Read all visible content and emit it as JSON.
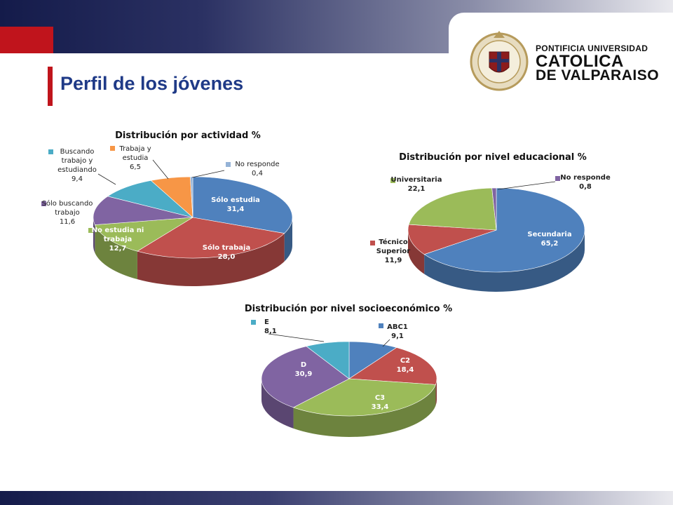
{
  "header": {
    "title": "Perfil de los jóvenes",
    "university": {
      "line1": "PONTIFICIA UNIVERSIDAD",
      "line2": "CATOLICA",
      "line3": "DE VALPARAISO",
      "crest_icon": "university-crest-icon"
    }
  },
  "colors": {
    "navy": "#1a1f4e",
    "red": "#c0141c",
    "title_blue": "#1f3a87"
  },
  "chart_data": [
    {
      "type": "pie",
      "title": "Distribución por actividad %",
      "categories": [
        "Sólo estudia",
        "Sólo trabaja",
        "No estudia ni trabaja",
        "Sólo buscando trabajo",
        "Buscando trabajo y estudiando",
        "Trabaja y estudia",
        "No responde"
      ],
      "label_lines": [
        [
          "Sólo estudia"
        ],
        [
          "Sólo trabaja"
        ],
        [
          "No estudia ni",
          "trabaja"
        ],
        [
          "Sólo buscando",
          "trabajo"
        ],
        [
          "Buscando",
          "trabajo y",
          "estudiando"
        ],
        [
          "Trabaja y",
          "estudia"
        ],
        [
          "No responde"
        ]
      ],
      "value_labels": [
        "31,4",
        "28,0",
        "12,7",
        "11,6",
        "9,4",
        "6,5",
        "0,4"
      ],
      "values": [
        31.4,
        28.0,
        12.7,
        11.6,
        9.4,
        6.5,
        0.4
      ],
      "colors": [
        "#4f81bd",
        "#c0504d",
        "#9bbb59",
        "#8064a2",
        "#4bacc6",
        "#f79646",
        "#95b3d7"
      ]
    },
    {
      "type": "pie",
      "title": "Distribución por nivel educacional %",
      "categories": [
        "Secundaria",
        "Técnico Superior",
        "Universitaria",
        "No responde"
      ],
      "label_lines": [
        [
          "Secundaria"
        ],
        [
          "Técnico",
          "Superior"
        ],
        [
          "Universitaria"
        ],
        [
          "No responde"
        ]
      ],
      "value_labels": [
        "65,2",
        "11,9",
        "22,1",
        "0,8"
      ],
      "values": [
        65.2,
        11.9,
        22.1,
        0.8
      ],
      "colors": [
        "#4f81bd",
        "#c0504d",
        "#9bbb59",
        "#8064a2"
      ]
    },
    {
      "type": "pie",
      "title": "Distribución por nivel socioeconómico %",
      "categories": [
        "ABC1",
        "C2",
        "C3",
        "D",
        "E"
      ],
      "label_lines": [
        [
          "ABC1"
        ],
        [
          "C2"
        ],
        [
          "C3"
        ],
        [
          "D"
        ],
        [
          "E"
        ]
      ],
      "value_labels": [
        "9,1",
        "18,4",
        "33,4",
        "30,9",
        "8,1"
      ],
      "values": [
        9.1,
        18.4,
        33.4,
        30.9,
        8.1
      ],
      "colors": [
        "#4f81bd",
        "#c0504d",
        "#9bbb59",
        "#8064a2",
        "#4bacc6"
      ]
    }
  ]
}
